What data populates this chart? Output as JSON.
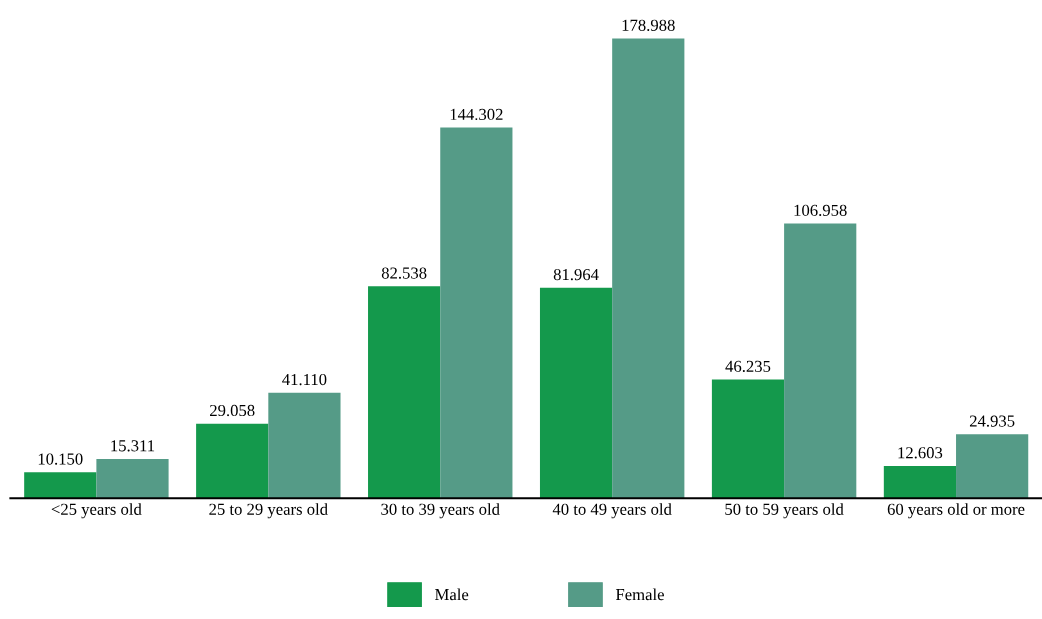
{
  "chart_data": {
    "type": "bar",
    "categories": [
      "<25 years old",
      "25 to 29 years old",
      "30 to 39 years old",
      "40 to 49 years old",
      "50 to 59 years old",
      "60 years old or more"
    ],
    "series": [
      {
        "name": "Male",
        "color": "#14994c",
        "values": [
          10.15,
          29.058,
          82.538,
          81.964,
          46.235,
          12.603
        ],
        "value_labels": [
          "10.150",
          "29.058",
          "82.538",
          "81.964",
          "46.235",
          "12.603"
        ]
      },
      {
        "name": "Female",
        "color": "#559b87",
        "values": [
          15.311,
          41.11,
          144.302,
          178.988,
          106.958,
          24.935
        ],
        "value_labels": [
          "15.311",
          "41.110",
          "144.302",
          "178.988",
          "106.958",
          "24.935"
        ]
      }
    ],
    "grid": false,
    "legend": "bottom",
    "tick_labels": "x"
  }
}
